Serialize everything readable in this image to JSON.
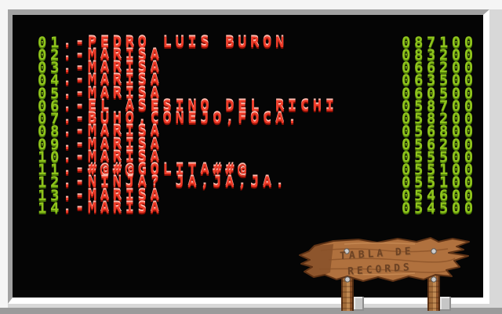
{
  "colors": {
    "screen_bg": "#050505",
    "rank_green": "#8fc41c",
    "rank_green_dark": "#4e7d06",
    "name_red": "#ef3b28",
    "name_red_light": "#ffb9ad",
    "name_red_dark": "#8c0e04",
    "wood_brown": "#b0713e",
    "wood_dark": "#5f3316",
    "sign_text_brown": "#6d4223"
  },
  "records": {
    "separator": ".-",
    "rows": [
      {
        "rank": "01",
        "name": "PEDRO LUIS BURON",
        "score": "087100"
      },
      {
        "rank": "02",
        "name": "MARISA",
        "score": "083200"
      },
      {
        "rank": "03",
        "name": "MARISA",
        "score": "066200"
      },
      {
        "rank": "04",
        "name": "MARISA",
        "score": "063500"
      },
      {
        "rank": "05",
        "name": "MARISA",
        "score": "060500"
      },
      {
        "rank": "06",
        "name": "EL ASESINO DEL RICHI",
        "score": "058700"
      },
      {
        "rank": "07",
        "name": "BUHO,CONEJO,FOCA.",
        "score": "058200"
      },
      {
        "rank": "08",
        "name": "MARISA",
        "score": "056800"
      },
      {
        "rank": "09",
        "name": "MARISA",
        "score": "056200"
      },
      {
        "rank": "10",
        "name": "MARISA",
        "score": "055500"
      },
      {
        "rank": "11",
        "name": "#@#@GOLITA##@",
        "score": "055100"
      },
      {
        "rank": "12",
        "name": "NINJA? JA,JA,JA.",
        "score": "055100"
      },
      {
        "rank": "13",
        "name": "MARISA",
        "score": "054600"
      },
      {
        "rank": "14",
        "name": "MARISA",
        "score": "054500"
      }
    ]
  },
  "sign": {
    "line1": "TABLA DE",
    "line2": "RECORDS"
  }
}
